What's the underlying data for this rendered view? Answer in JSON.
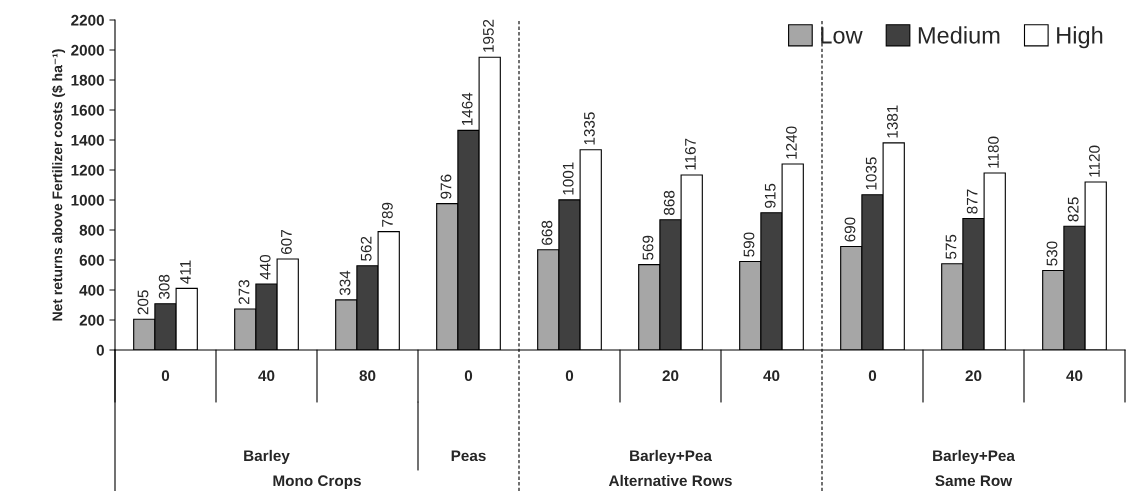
{
  "chart_data": {
    "type": "bar",
    "ylabel": "Net returns above Fertilizer costs ($ ha⁻¹)",
    "categories": [
      "0",
      "40",
      "80",
      "0",
      "0",
      "20",
      "40",
      "0",
      "20",
      "40"
    ],
    "series": [
      {
        "name": "Low",
        "color": "#a6a6a6",
        "values": [
          205,
          273,
          334,
          976,
          668,
          569,
          590,
          690,
          575,
          530
        ]
      },
      {
        "name": "Medium",
        "color": "#404040",
        "values": [
          308,
          440,
          562,
          1464,
          1001,
          868,
          915,
          1035,
          877,
          825
        ]
      },
      {
        "name": "High",
        "color": "#ffffff",
        "values": [
          411,
          607,
          789,
          1952,
          1335,
          1167,
          1240,
          1381,
          1180,
          1120
        ]
      }
    ],
    "ylim": [
      0,
      2200
    ],
    "yticks": [
      0,
      200,
      400,
      600,
      800,
      1000,
      1200,
      1400,
      1600,
      1800,
      2000,
      2200
    ],
    "data_labels": true,
    "legend": "top right",
    "grid": false,
    "annotations": [
      "Barley",
      "Peas",
      "Barley+Pea",
      "Barley+Pea",
      "Mono Crops",
      "Alternative Rows",
      "Same Row"
    ]
  }
}
